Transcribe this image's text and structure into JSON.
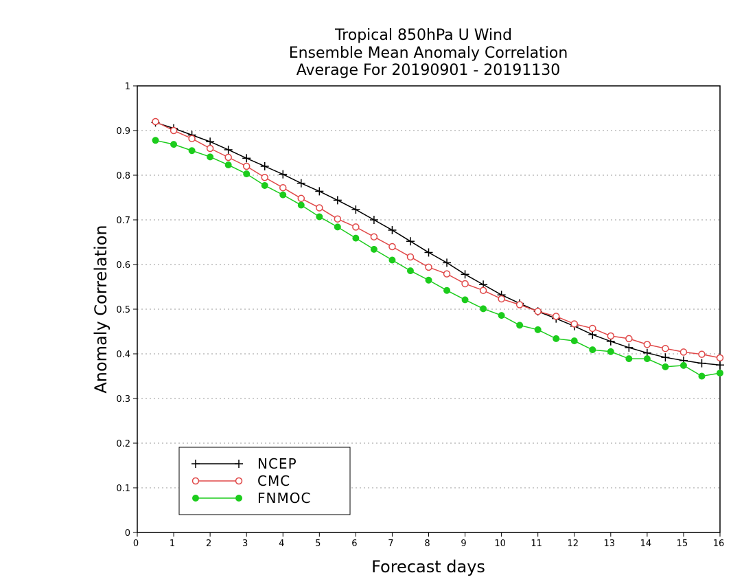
{
  "chart_data": {
    "type": "line",
    "title": [
      "Tropical 850hPa U Wind",
      "Ensemble Mean Anomaly Correlation",
      "Average For 20190901 - 20191130"
    ],
    "xlabel": "Forecast days",
    "ylabel": "Anomaly Correlation",
    "xlim": [
      0,
      16
    ],
    "ylim": [
      0,
      1
    ],
    "xticks": [
      "0",
      "1",
      "2",
      "3",
      "4",
      "5",
      "6",
      "7",
      "8",
      "9",
      "10",
      "11",
      "12",
      "13",
      "14",
      "15",
      "16"
    ],
    "yticks": [
      "0",
      "0.1",
      "0.2",
      "0.3",
      "0.4",
      "0.5",
      "0.6",
      "0.7",
      "0.8",
      "0.9",
      "1"
    ],
    "grid": "horizontal dotted",
    "legend_position": "bottom-left",
    "x": [
      0.5,
      1,
      1.5,
      2,
      2.5,
      3,
      3.5,
      4,
      4.5,
      5,
      5.5,
      6,
      6.5,
      7,
      7.5,
      8,
      8.5,
      9,
      9.5,
      10,
      10.5,
      11,
      11.5,
      12,
      12.5,
      13,
      13.5,
      14,
      14.5,
      15,
      15.5,
      16
    ],
    "series": [
      {
        "name": "NCEP",
        "color": "#000000",
        "marker": "plus",
        "values": [
          0.918,
          0.905,
          0.89,
          0.875,
          0.857,
          0.838,
          0.82,
          0.802,
          0.782,
          0.764,
          0.744,
          0.723,
          0.7,
          0.677,
          0.652,
          0.627,
          0.604,
          0.578,
          0.555,
          0.532,
          0.513,
          0.495,
          0.479,
          0.462,
          0.443,
          0.428,
          0.414,
          0.402,
          0.392,
          0.385,
          0.379,
          0.375
        ]
      },
      {
        "name": "CMC",
        "color": "#e04848",
        "marker": "open-circle",
        "values": [
          0.92,
          0.9,
          0.882,
          0.86,
          0.84,
          0.82,
          0.795,
          0.772,
          0.748,
          0.727,
          0.702,
          0.684,
          0.662,
          0.64,
          0.617,
          0.594,
          0.579,
          0.557,
          0.542,
          0.523,
          0.51,
          0.495,
          0.484,
          0.467,
          0.457,
          0.44,
          0.434,
          0.421,
          0.412,
          0.404,
          0.399,
          0.391
        ]
      },
      {
        "name": "FNMOC",
        "color": "#1ccc1c",
        "marker": "filled-circle",
        "values": [
          0.878,
          0.869,
          0.855,
          0.841,
          0.823,
          0.803,
          0.777,
          0.756,
          0.733,
          0.707,
          0.684,
          0.659,
          0.634,
          0.61,
          0.586,
          0.565,
          0.542,
          0.521,
          0.501,
          0.486,
          0.464,
          0.454,
          0.434,
          0.429,
          0.409,
          0.405,
          0.389,
          0.389,
          0.371,
          0.374,
          0.35,
          0.357
        ]
      }
    ]
  }
}
